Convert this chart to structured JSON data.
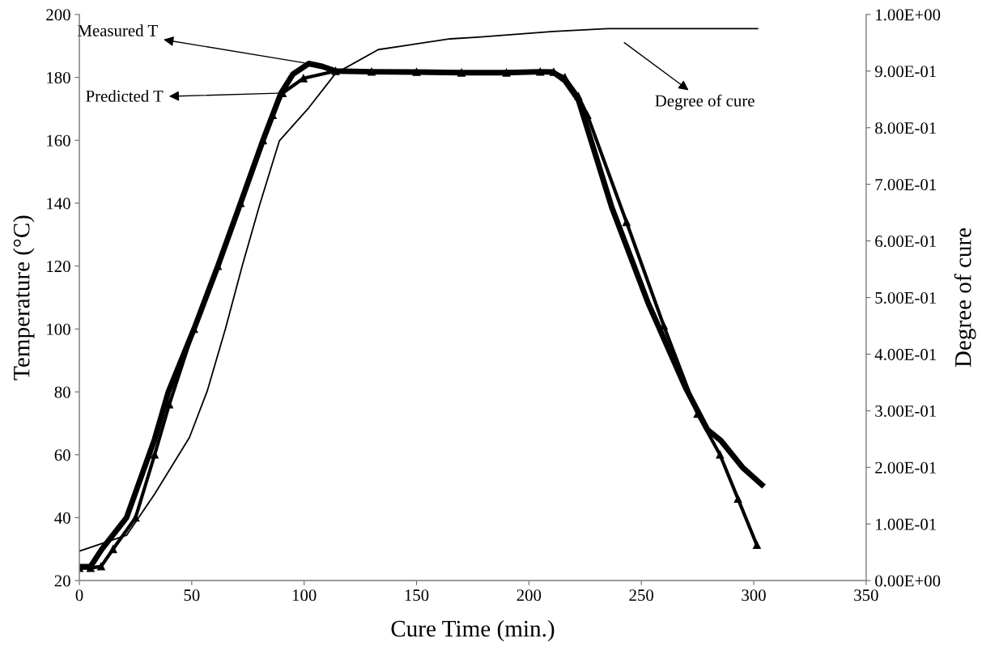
{
  "chart_data": {
    "type": "line",
    "xlabel": "Cure Time (min.)",
    "ylabel": "Temperature (°C)",
    "y2label": "Degree of cure",
    "xlim": [
      0,
      350
    ],
    "xticks": [
      0,
      50,
      100,
      150,
      200,
      250,
      300,
      350
    ],
    "ylim": [
      20,
      200
    ],
    "yticks": [
      20,
      40,
      60,
      80,
      100,
      120,
      140,
      160,
      180,
      200
    ],
    "y2lim": [
      0,
      1
    ],
    "y2ticks": [
      {
        "value": 0,
        "label": "0.00E+00"
      },
      {
        "value": 0.1,
        "label": "1.00E-01"
      },
      {
        "value": 0.2,
        "label": "2.00E-01"
      },
      {
        "value": 0.3,
        "label": "3.00E-01"
      },
      {
        "value": 0.4,
        "label": "4.00E-01"
      },
      {
        "value": 0.5,
        "label": "5.00E-01"
      },
      {
        "value": 0.6,
        "label": "6.00E-01"
      },
      {
        "value": 0.7,
        "label": "7.00E-01"
      },
      {
        "value": 0.8,
        "label": "8.00E-01"
      },
      {
        "value": 0.9,
        "label": "9.00E-01"
      },
      {
        "value": 1,
        "label": "1.00E+00"
      }
    ],
    "grid": false,
    "series": [
      {
        "color": "#000000",
        "marker": "none",
        "x": [
          0,
          5,
          10,
          21,
          33.5,
          39.6,
          51,
          61.6,
          71.7,
          81.7,
          89.7,
          95,
          102,
          108,
          114,
          130,
          150,
          170,
          190,
          205,
          210.7,
          216,
          222,
          236.8,
          253,
          269.7,
          279.4,
          285.4,
          295,
          303.6
        ],
        "values": [
          24.4,
          24.5,
          30,
          40,
          65,
          80,
          100,
          120,
          140,
          160,
          175,
          181,
          184.4,
          183.5,
          182,
          181.8,
          181.7,
          181.5,
          181.5,
          181.8,
          181.7,
          179,
          172.9,
          138.8,
          108.3,
          81.3,
          68,
          64.5,
          56,
          50.5
        ]
      },
      {
        "color": "#000000",
        "marker": "triangle",
        "x": [
          0,
          5,
          9.7,
          15,
          25,
          33.5,
          40,
          51,
          61.6,
          71.7,
          81.7,
          86,
          90.4,
          99.7,
          114,
          130,
          150,
          170,
          190,
          205,
          211,
          216,
          222,
          226,
          243.4,
          260,
          275,
          285,
          293,
          301.4
        ],
        "values": [
          24,
          24,
          24.5,
          30,
          40,
          60,
          76,
          100,
          120,
          140,
          160,
          168,
          175,
          179.7,
          182,
          181.8,
          181.7,
          181.5,
          181.5,
          181.8,
          181.7,
          180,
          174,
          168,
          134,
          101,
          73,
          60,
          46,
          31.3
        ]
      },
      {
        "color": "#000000",
        "marker": "none",
        "axis": "y2",
        "x": [
          0,
          21,
          33.5,
          49,
          56.9,
          65,
          72.4,
          80.3,
          89,
          102,
          114,
          133,
          144.8,
          165,
          177.5,
          210.7,
          235,
          270,
          301.7
        ],
        "values": [
          0.052,
          0.08,
          0.153,
          0.253,
          0.335,
          0.445,
          0.555,
          0.665,
          0.777,
          0.835,
          0.896,
          0.938,
          0.945,
          0.957,
          0.96,
          0.97,
          0.975,
          0.975,
          0.975
        ]
      }
    ],
    "annotations": [
      {
        "text": "Measured T",
        "x": 102,
        "y": 184.4
      },
      {
        "text": "Predicted T",
        "x": 90.4,
        "y": 175
      },
      "Degree of cure"
    ]
  }
}
